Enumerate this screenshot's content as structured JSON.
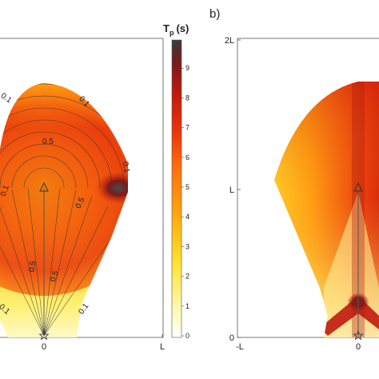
{
  "chart_data": [
    {
      "type": "heatmap",
      "panel": "a",
      "title": "",
      "x_ticks": [
        "0",
        "L"
      ],
      "y_ticks": [],
      "contour_labels": [
        "0.1",
        "0.5",
        "0.1",
        "0.1",
        "0.5",
        "0.5",
        "0.1",
        "0.1"
      ],
      "colorbar": {
        "title": "T",
        "title_sub": "p",
        "title_unit": "(s)",
        "ticks": [
          "0",
          "1",
          "2",
          "3",
          "4",
          "5",
          "6",
          "7",
          "8",
          "9"
        ],
        "range": [
          0,
          10
        ],
        "colors": [
          "#ffffff",
          "#fff6a0",
          "#ffe135",
          "#ffbf16",
          "#ff9a0f",
          "#ff6a0e",
          "#e8300c",
          "#c01a0e",
          "#7a1a1a",
          "#3a3a3a"
        ]
      },
      "markers": [
        "triangle",
        "star"
      ]
    },
    {
      "type": "heatmap",
      "panel": "b",
      "title": "b)",
      "x_ticks": [
        "-L",
        "0"
      ],
      "y_ticks": [
        "0",
        "L",
        "2L"
      ],
      "colorbar_range": [
        0,
        10
      ],
      "markers": [
        "triangle",
        "star"
      ]
    }
  ]
}
